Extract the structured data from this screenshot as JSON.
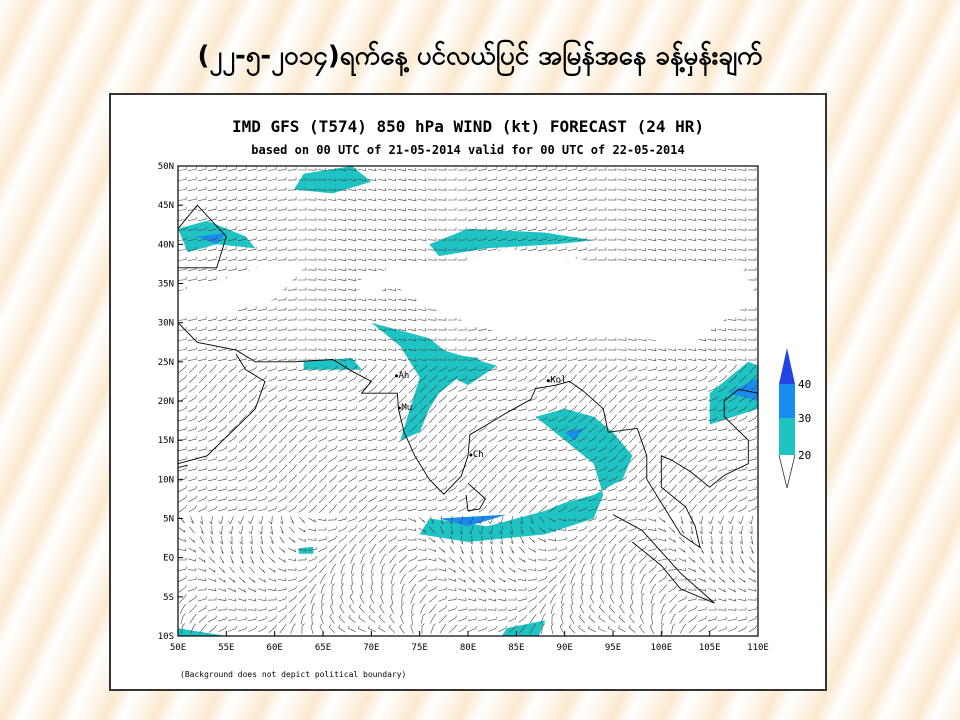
{
  "header": {
    "title": "(၂၂-၅-၂၀၁၄)ရက်နေ့ ပင်လယ်ပြင် အမြန်အနေ ခန့်မှန်းချက်"
  },
  "figure": {
    "title": "IMD GFS (T574) 850 hPa WIND (kt) FORECAST (24 HR)",
    "subtitle": "based on 00 UTC of 21-05-2014 valid for 00 UTC of 22-05-2014",
    "lat_labels": [
      "50N",
      "45N",
      "40N",
      "35N",
      "30N",
      "25N",
      "20N",
      "15N",
      "10N",
      "5N",
      "EQ",
      "5S",
      "10S"
    ],
    "lon_labels": [
      "50E",
      "55E",
      "60E",
      "65E",
      "70E",
      "75E",
      "80E",
      "85E",
      "90E",
      "95E",
      "100E",
      "105E",
      "110E"
    ],
    "stations": [
      "Ah",
      "Kol",
      "Mu",
      "Ch"
    ],
    "colorbar": [
      40,
      30,
      20
    ],
    "footnote": "(Background does not depict political boundary)"
  }
}
